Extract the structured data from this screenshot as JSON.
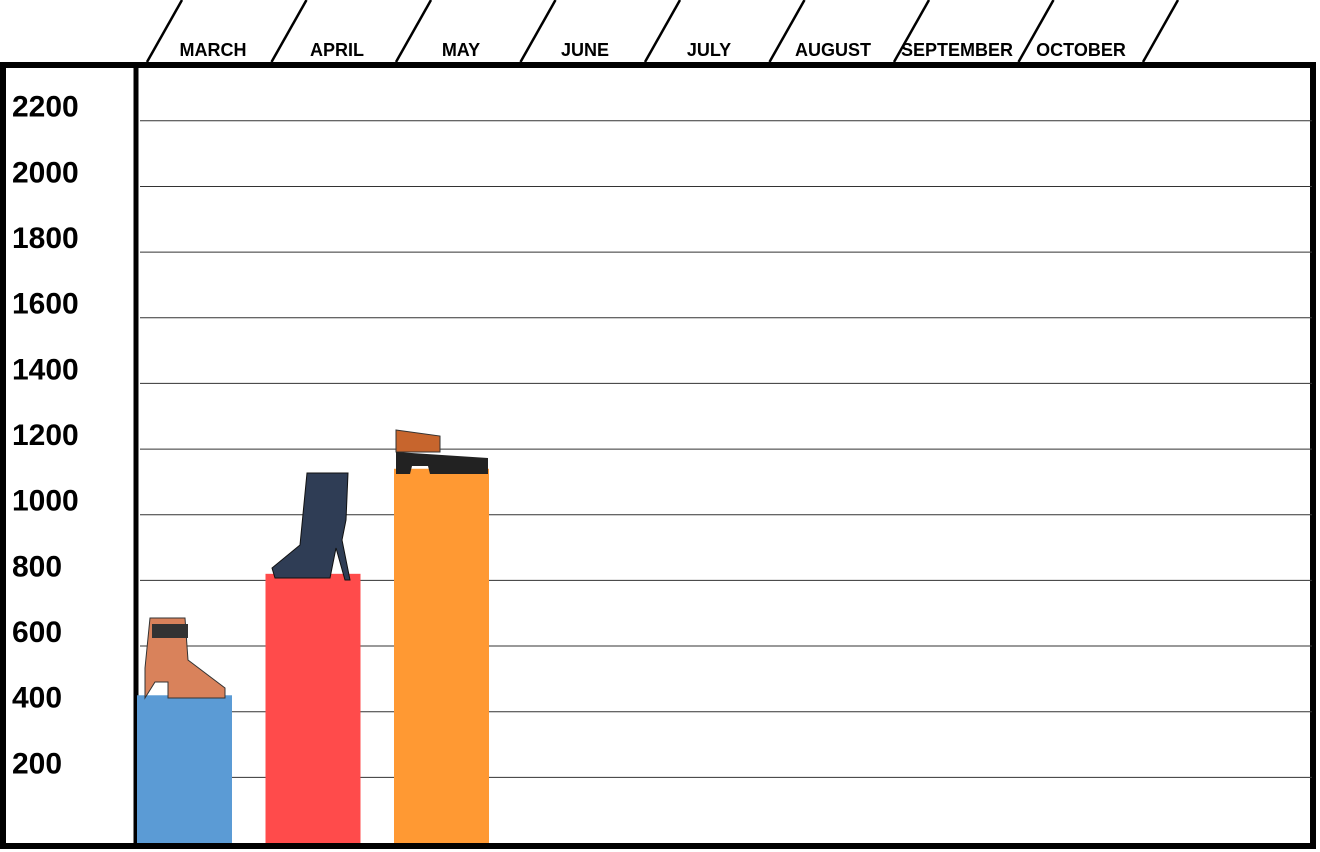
{
  "chart_data": {
    "type": "bar",
    "categories": [
      "MARCH",
      "APRIL",
      "MAY",
      "JUNE",
      "JULY",
      "AUGUST",
      "SEPTEMBER",
      "OCTOBER"
    ],
    "values": [
      450,
      820,
      1140,
      null,
      null,
      null,
      null,
      null
    ],
    "colors": [
      "#5b9bd5",
      "#ff4b4b",
      "#ff9933"
    ],
    "ylim": [
      0,
      2370
    ],
    "yticks": [
      200,
      400,
      600,
      800,
      1000,
      1200,
      1400,
      1600,
      1800,
      2000,
      2200
    ],
    "grid": true
  }
}
